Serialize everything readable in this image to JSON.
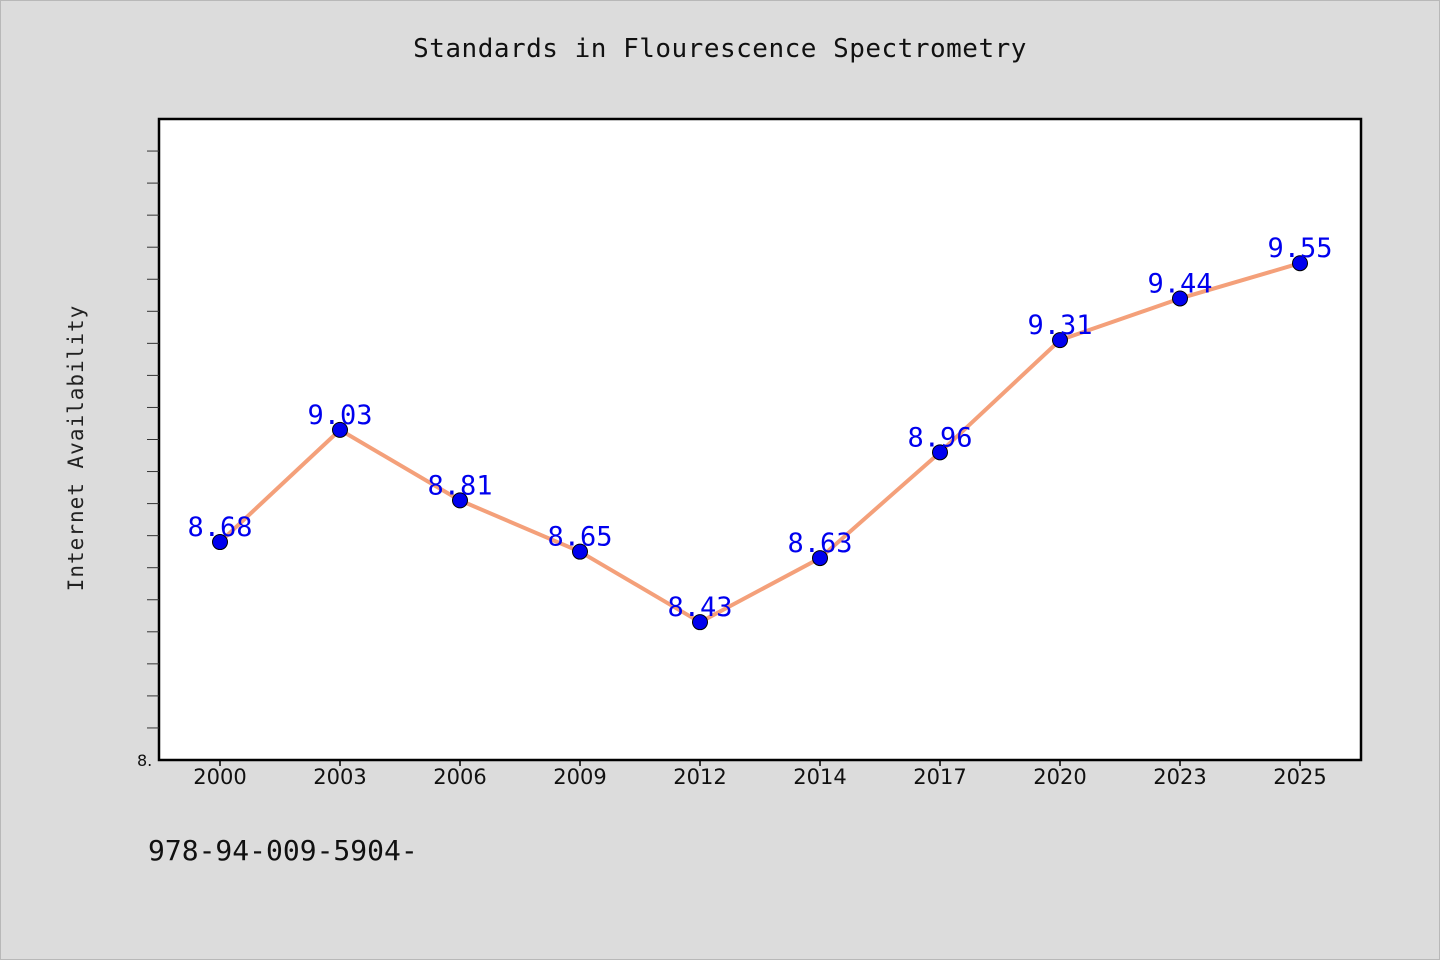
{
  "chart_data": {
    "type": "line",
    "title": "Standards in Flourescence Spectrometry",
    "xlabel": "",
    "ylabel": "Internet Availability",
    "categories": [
      "2000",
      "2003",
      "2006",
      "2009",
      "2012",
      "2014",
      "2017",
      "2020",
      "2023",
      "2025"
    ],
    "values": [
      8.68,
      9.03,
      8.81,
      8.65,
      8.43,
      8.63,
      8.96,
      9.31,
      9.44,
      9.55
    ],
    "data_labels": [
      "8.68",
      "9.03",
      "8.81",
      "8.65",
      "8.43",
      "8.63",
      "8.96",
      "9.31",
      "9.44",
      "9.55"
    ],
    "ylim": [
      8.0,
      10.0
    ],
    "y_tick_labels": [
      "8."
    ],
    "grid": false,
    "legend": "none",
    "colors": {
      "line": "#f4a07a",
      "marker": "#0000ee",
      "data_label": "#0000ee",
      "plot_background": "#ffffff",
      "page_background": "#dcdcdc"
    }
  },
  "footer": {
    "text": "978-94-009-5904-"
  }
}
